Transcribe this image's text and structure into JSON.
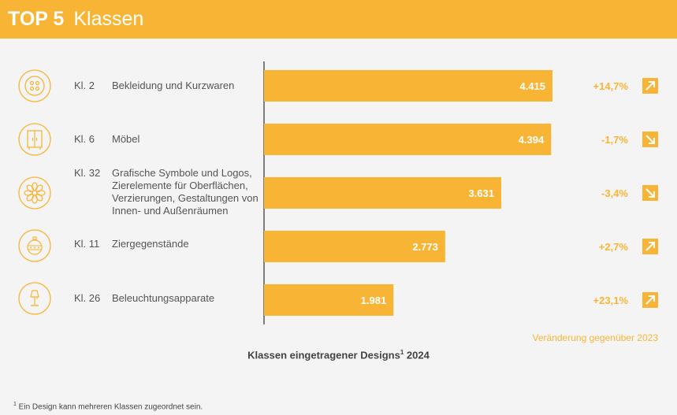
{
  "header": {
    "top": "TOP 5",
    "title": "Klassen"
  },
  "rows": [
    {
      "class_label": "Kl. 2",
      "name": "Bekleidung und Kurzwaren",
      "value_label": "4.415",
      "change": "+14,7%",
      "icon": "button-icon"
    },
    {
      "class_label": "Kl. 6",
      "name": "Möbel",
      "value_label": "4.394",
      "change": "-1,7%",
      "icon": "cabinet-icon"
    },
    {
      "class_label": "Kl. 32",
      "name": "Grafische Symbole und Logos, Zierelemente für Oberflächen, Verzierungen, Gestaltungen von Innen- und Außenräumen",
      "value_label": "3.631",
      "change": "-3,4%",
      "icon": "flower-ornament-icon"
    },
    {
      "class_label": "Kl. 11",
      "name": "Ziergegenstände",
      "value_label": "2.773",
      "change": "+2,7%",
      "icon": "bauble-icon"
    },
    {
      "class_label": "Kl. 26",
      "name": "Beleuchtungsapparate",
      "value_label": "1.981",
      "change": "+23,1%",
      "icon": "lamp-icon"
    }
  ],
  "change_note": "Veränderung gegenüber 2023",
  "caption": {
    "text": "Klassen eingetragener Designs",
    "sup": "1",
    "year": " 2024"
  },
  "footnote": {
    "sup": "1",
    "text": " Ein Design kann mehreren Klassen zugeordnet sein."
  },
  "colors": {
    "accent": "#f8b535",
    "bar": "#f8b535"
  },
  "chart_data": {
    "type": "bar",
    "orientation": "horizontal",
    "categories": [
      "Kl. 2",
      "Kl. 6",
      "Kl. 32",
      "Kl. 11",
      "Kl. 26"
    ],
    "values": [
      4415,
      4394,
      3631,
      2773,
      1981
    ],
    "change_vs_2023_percent": [
      14.7,
      -1.7,
      -3.4,
      2.7,
      23.1
    ],
    "title": "Klassen eingetragener Designs 2024"
  }
}
